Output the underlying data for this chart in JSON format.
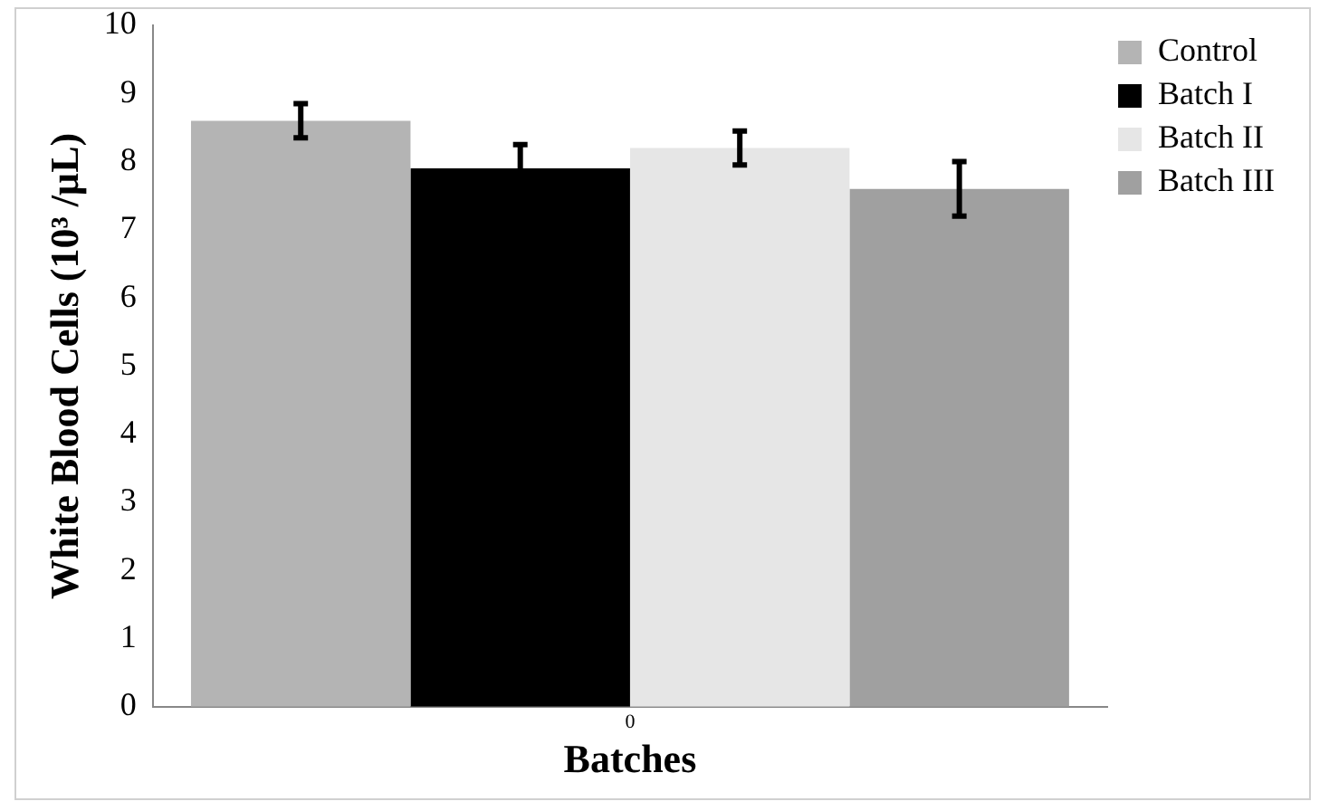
{
  "chart_data": {
    "type": "bar",
    "xlabel": "Batches",
    "ylabel": "White Blood Cells (10³ /µL)",
    "categories": [
      "0"
    ],
    "series": [
      {
        "name": "Control",
        "color": "#b4b4b4",
        "values": [
          8.6
        ],
        "errors": [
          0.25
        ]
      },
      {
        "name": "Batch I",
        "color": "#000000",
        "values": [
          7.9
        ],
        "errors": [
          0.35
        ]
      },
      {
        "name": "Batch II",
        "color": "#e6e6e6",
        "values": [
          8.2
        ],
        "errors": [
          0.25
        ]
      },
      {
        "name": "Batch III",
        "color": "#a0a0a0",
        "values": [
          7.6
        ],
        "errors": [
          0.4
        ]
      }
    ],
    "ylim": [
      0,
      10
    ],
    "yticks": [
      0,
      1,
      2,
      3,
      4,
      5,
      6,
      7,
      8,
      9,
      10
    ],
    "grid": false,
    "legend": "top right"
  }
}
